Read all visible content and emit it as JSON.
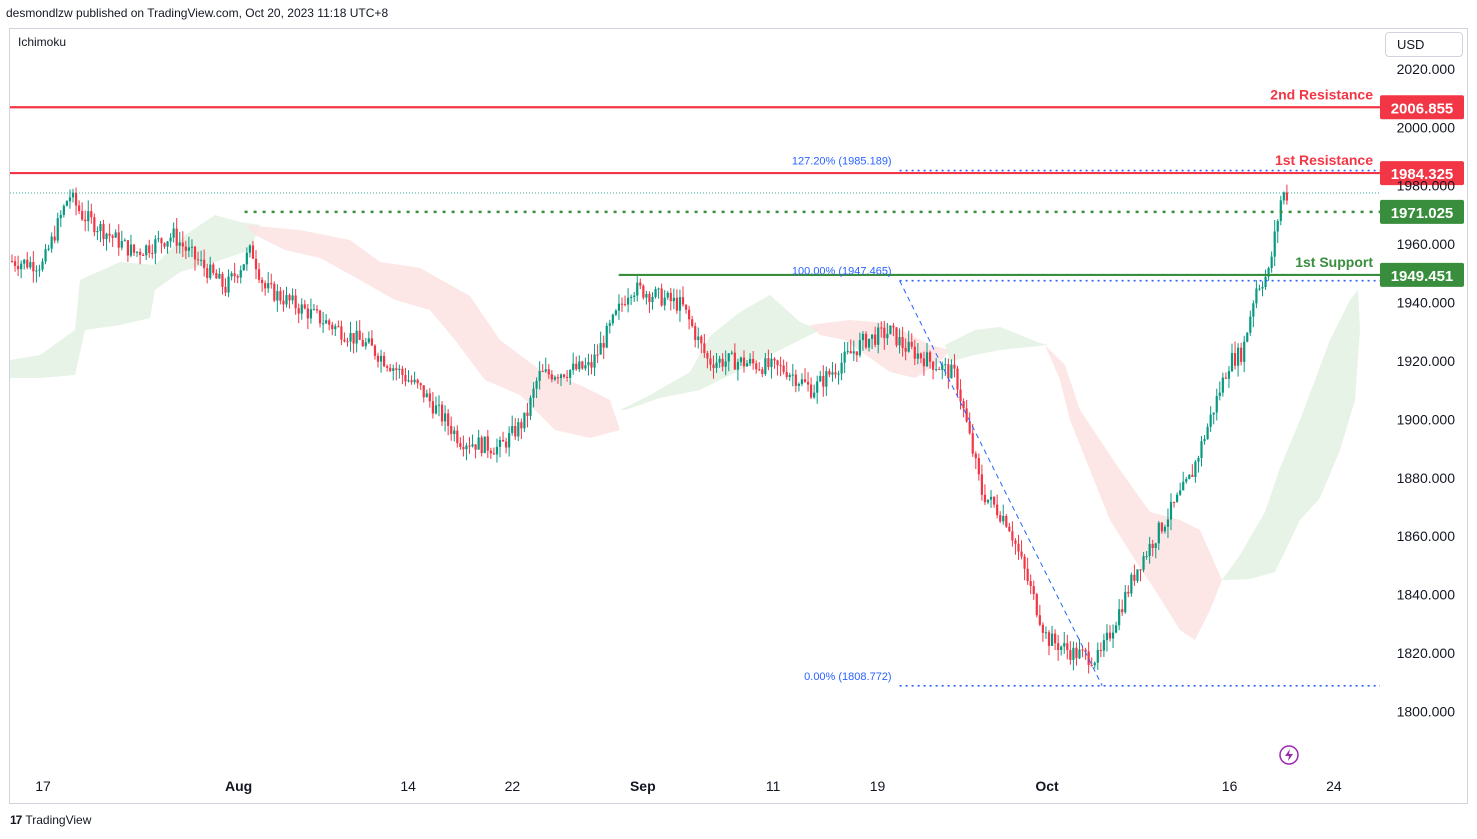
{
  "header": {
    "published": "desmondlzw published on TradingView.com, Oct 20, 2023 11:18 UTC+8"
  },
  "indicator": {
    "name": "Ichimoku"
  },
  "currency": {
    "label": "USD"
  },
  "footer": {
    "brand": "TradingView",
    "logo": "tradingview-logo-icon"
  },
  "colors": {
    "resistance": "#f23645",
    "support": "#388e3c",
    "fib": "#2962ff",
    "bull": "#089981",
    "bear": "#f23645",
    "cloud_bull": "#e3f2e3",
    "cloud_bear": "#fde3e3"
  },
  "chart_data": {
    "type": "candlestick",
    "symbol_indicator": "Ichimoku",
    "ylim": [
      1793,
      2027
    ],
    "y_ticks": [
      "2020.000",
      "2000.000",
      "1980.000",
      "1960.000",
      "1940.000",
      "1920.000",
      "1900.000",
      "1880.000",
      "1860.000",
      "1840.000",
      "1820.000",
      "1800.000"
    ],
    "x_ticks": [
      "17",
      "Aug",
      "14",
      "22",
      "Sep",
      "11",
      "19",
      "Oct",
      "16",
      "24"
    ],
    "levels": [
      {
        "name": "2nd Resistance",
        "label": "2nd Resistance",
        "value": 2006.855,
        "tag": "2006.855",
        "color": "#f23645"
      },
      {
        "name": "1st Resistance",
        "label": "1st Resistance",
        "value": 1984.325,
        "tag": "1984.325",
        "color": "#f23645"
      },
      {
        "name": "1st Support",
        "label": "1st Support",
        "value": 1949.451,
        "tag": "1949.451",
        "color": "#388e3c"
      }
    ],
    "pivot_level": {
      "value": 1971.025,
      "tag": "1971.025"
    },
    "fibonacci": [
      {
        "label": "127.20% (1985.189)",
        "value": 1985.189
      },
      {
        "label": "100.00% (1947.465)",
        "value": 1947.465
      },
      {
        "label": "0.00% (1808.772)",
        "value": 1808.772
      }
    ],
    "close_path": [
      {
        "date": "2023-07-13",
        "close": 1955
      },
      {
        "date": "2023-07-17",
        "close": 1953
      },
      {
        "date": "2023-07-19",
        "close": 1977
      },
      {
        "date": "2023-07-20",
        "close": 1970
      },
      {
        "date": "2023-07-24",
        "close": 1957
      },
      {
        "date": "2023-07-27",
        "close": 1963
      },
      {
        "date": "2023-07-28",
        "close": 1958
      },
      {
        "date": "2023-07-31",
        "close": 1945
      },
      {
        "date": "2023-08-02",
        "close": 1958
      },
      {
        "date": "2023-08-03",
        "close": 1945
      },
      {
        "date": "2023-08-07",
        "close": 1935
      },
      {
        "date": "2023-08-11",
        "close": 1925
      },
      {
        "date": "2023-08-15",
        "close": 1910
      },
      {
        "date": "2023-08-18",
        "close": 1893
      },
      {
        "date": "2023-08-21",
        "close": 1890
      },
      {
        "date": "2023-08-23",
        "close": 1900
      },
      {
        "date": "2023-08-24",
        "close": 1915
      },
      {
        "date": "2023-08-28",
        "close": 1918
      },
      {
        "date": "2023-08-31",
        "close": 1945
      },
      {
        "date": "2023-09-01",
        "close": 1944
      },
      {
        "date": "2023-09-04",
        "close": 1939
      },
      {
        "date": "2023-09-06",
        "close": 1920
      },
      {
        "date": "2023-09-08",
        "close": 1920
      },
      {
        "date": "2023-09-12",
        "close": 1917
      },
      {
        "date": "2023-09-14",
        "close": 1910
      },
      {
        "date": "2023-09-18",
        "close": 1927
      },
      {
        "date": "2023-09-20",
        "close": 1930
      },
      {
        "date": "2023-09-21",
        "close": 1925
      },
      {
        "date": "2023-09-25",
        "close": 1915
      },
      {
        "date": "2023-09-27",
        "close": 1875
      },
      {
        "date": "2023-09-29",
        "close": 1865
      },
      {
        "date": "2023-10-02",
        "close": 1825
      },
      {
        "date": "2023-10-04",
        "close": 1820
      },
      {
        "date": "2023-10-06",
        "close": 1818
      },
      {
        "date": "2023-10-09",
        "close": 1850
      },
      {
        "date": "2023-10-11",
        "close": 1865
      },
      {
        "date": "2023-10-13",
        "close": 1880
      },
      {
        "date": "2023-10-16",
        "close": 1920
      },
      {
        "date": "2023-10-17",
        "close": 1923
      },
      {
        "date": "2023-10-18",
        "close": 1945
      },
      {
        "date": "2023-10-19",
        "close": 1950
      },
      {
        "date": "2023-10-20",
        "close": 1977
      }
    ]
  }
}
